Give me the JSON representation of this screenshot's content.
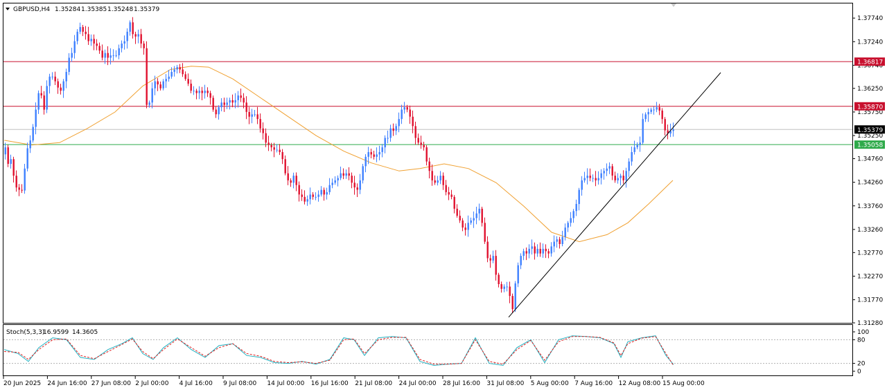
{
  "header": {
    "menu_icon": "triangle-down-icon",
    "symbol": "GBPUSD,H4",
    "open": "1.35284",
    "high": "1.35385",
    "low": "1.35248",
    "close": "1.35379"
  },
  "indicator": {
    "label": "Stoch(5,3,3)",
    "k_value": "16.9599",
    "d_value": "14.3605",
    "levels": [
      "100",
      "80",
      "20",
      "0"
    ]
  },
  "price_axis": {
    "ticks": [
      "1.37740",
      "1.37240",
      "1.36740",
      "1.36250",
      "1.35750",
      "1.35250",
      "1.34760",
      "1.34260",
      "1.33760",
      "1.33260",
      "1.32770",
      "1.32270",
      "1.31770",
      "1.31280"
    ]
  },
  "price_tags": [
    {
      "value": "1.36817",
      "color": "#c8102e",
      "text_color": "#ffffff"
    },
    {
      "value": "1.35870",
      "color": "#c8102e",
      "text_color": "#ffffff"
    },
    {
      "value": "1.35379",
      "color": "#000000",
      "text_color": "#ffffff"
    },
    {
      "value": "1.35058",
      "color": "#2eaa4a",
      "text_color": "#ffffff"
    }
  ],
  "time_axis": {
    "labels": [
      "20 Jun 2025",
      "24 Jun 16:00",
      "27 Jun 08:00",
      "2 Jul 00:00",
      "4 Jul 16:00",
      "9 Jul 08:00",
      "14 Jul 00:00",
      "16 Jul 16:00",
      "21 Jul 08:00",
      "24 Jul 00:00",
      "28 Jul 16:00",
      "31 Jul 08:00",
      "5 Aug 00:00",
      "7 Aug 16:00",
      "12 Aug 08:00",
      "15 Aug 00:00"
    ]
  },
  "colors": {
    "bull": "#3d7fff",
    "bear": "#e0102e",
    "ma": "#f0a030",
    "trendline": "#000000",
    "resistance": "#c8102e",
    "support": "#2eaa4a",
    "stoch_main": "#20b0c0",
    "stoch_signal": "#e02020"
  },
  "chart_data": {
    "type": "candlestick",
    "symbol": "GBPUSD",
    "timeframe": "H4",
    "ylim": [
      1.3128,
      1.3805
    ],
    "x_start": "20 Jun 2025",
    "x_end": "15 Aug 00:00",
    "candle_path": [
      [
        0,
        1.3485
      ],
      [
        4,
        1.35
      ],
      [
        8,
        1.3465
      ],
      [
        12,
        1.3475
      ],
      [
        16,
        1.344
      ],
      [
        19,
        1.3425
      ],
      [
        22,
        1.3395
      ],
      [
        24,
        1.341
      ],
      [
        27,
        1.34
      ],
      [
        30,
        1.3425
      ],
      [
        33,
        1.347
      ],
      [
        36,
        1.3498
      ],
      [
        39,
        1.3512
      ],
      [
        42,
        1.352
      ],
      [
        45,
        1.3555
      ],
      [
        48,
        1.358
      ],
      [
        52,
        1.3615
      ],
      [
        56,
        1.361
      ],
      [
        60,
        1.358
      ],
      [
        64,
        1.363
      ],
      [
        67,
        1.365
      ],
      [
        70,
        1.365
      ],
      [
        73,
        1.365
      ],
      [
        76,
        1.364
      ],
      [
        79,
        1.363
      ],
      [
        82,
        1.362
      ],
      [
        85,
        1.362
      ],
      [
        88,
        1.364
      ],
      [
        92,
        1.366
      ],
      [
        96,
        1.369
      ],
      [
        100,
        1.37
      ],
      [
        104,
        1.3725
      ],
      [
        108,
        1.3745
      ],
      [
        112,
        1.3755
      ],
      [
        116,
        1.3745
      ],
      [
        120,
        1.374
      ],
      [
        124,
        1.3725
      ],
      [
        128,
        1.373
      ],
      [
        132,
        1.372
      ],
      [
        136,
        1.3715
      ],
      [
        140,
        1.3705
      ],
      [
        144,
        1.369
      ],
      [
        148,
        1.37
      ],
      [
        152,
        1.369
      ],
      [
        156,
        1.3695
      ],
      [
        160,
        1.3695
      ],
      [
        164,
        1.3695
      ],
      [
        168,
        1.371
      ],
      [
        172,
        1.372
      ],
      [
        176,
        1.3725
      ],
      [
        180,
        1.3745
      ],
      [
        184,
        1.3765
      ],
      [
        188,
        1.374
      ],
      [
        192,
        1.3735
      ],
      [
        196,
        1.374
      ],
      [
        200,
        1.372
      ],
      [
        204,
        1.371
      ],
      [
        206,
        1.365
      ],
      [
        208,
        1.359
      ],
      [
        210,
        1.3585
      ],
      [
        213,
        1.36
      ],
      [
        216,
        1.3625
      ],
      [
        219,
        1.364
      ],
      [
        222,
        1.364
      ],
      [
        225,
        1.363
      ],
      [
        228,
        1.3625
      ],
      [
        232,
        1.364
      ],
      [
        236,
        1.3645
      ],
      [
        240,
        1.365
      ],
      [
        244,
        1.366
      ],
      [
        248,
        1.3665
      ],
      [
        252,
        1.367
      ],
      [
        256,
        1.3665
      ],
      [
        260,
        1.3655
      ],
      [
        264,
        1.3645
      ],
      [
        268,
        1.3635
      ],
      [
        272,
        1.362
      ],
      [
        276,
        1.362
      ],
      [
        280,
        1.3615
      ],
      [
        284,
        1.362
      ],
      [
        288,
        1.3615
      ],
      [
        292,
        1.362
      ],
      [
        296,
        1.3615
      ],
      [
        300,
        1.3605
      ],
      [
        304,
        1.358
      ],
      [
        308,
        1.357
      ],
      [
        312,
        1.3585
      ],
      [
        316,
        1.3595
      ],
      [
        320,
        1.359
      ],
      [
        324,
        1.3595
      ],
      [
        328,
        1.36
      ],
      [
        332,
        1.3595
      ],
      [
        336,
        1.36
      ],
      [
        340,
        1.361
      ],
      [
        344,
        1.3605
      ],
      [
        348,
        1.3595
      ],
      [
        352,
        1.3575
      ],
      [
        356,
        1.3565
      ],
      [
        360,
        1.357
      ],
      [
        364,
        1.357
      ],
      [
        368,
        1.356
      ],
      [
        372,
        1.354
      ],
      [
        376,
        1.353
      ],
      [
        380,
        1.351
      ],
      [
        384,
        1.3505
      ],
      [
        388,
        1.35
      ],
      [
        392,
        1.3495
      ],
      [
        396,
        1.3495
      ],
      [
        400,
        1.349
      ],
      [
        404,
        1.3475
      ],
      [
        408,
        1.3445
      ],
      [
        412,
        1.343
      ],
      [
        416,
        1.3425
      ],
      [
        420,
        1.344
      ],
      [
        424,
        1.342
      ],
      [
        428,
        1.34
      ],
      [
        432,
        1.3395
      ],
      [
        436,
        1.3385
      ],
      [
        440,
        1.339
      ],
      [
        444,
        1.34
      ],
      [
        448,
        1.3395
      ],
      [
        452,
        1.3395
      ],
      [
        456,
        1.34
      ],
      [
        460,
        1.341
      ],
      [
        464,
        1.34
      ],
      [
        468,
        1.3405
      ],
      [
        472,
        1.342
      ],
      [
        476,
        1.3425
      ],
      [
        480,
        1.343
      ],
      [
        484,
        1.3435
      ],
      [
        488,
        1.3445
      ],
      [
        492,
        1.344
      ],
      [
        496,
        1.3445
      ],
      [
        500,
        1.344
      ],
      [
        504,
        1.3425
      ],
      [
        508,
        1.3415
      ],
      [
        512,
        1.341
      ],
      [
        516,
        1.343
      ],
      [
        520,
        1.346
      ],
      [
        524,
        1.348
      ],
      [
        528,
        1.349
      ],
      [
        532,
        1.3485
      ],
      [
        536,
        1.348
      ],
      [
        540,
        1.3485
      ],
      [
        544,
        1.349
      ],
      [
        548,
        1.35
      ],
      [
        552,
        1.352
      ],
      [
        556,
        1.352
      ],
      [
        560,
        1.354
      ],
      [
        564,
        1.3535
      ],
      [
        568,
        1.3545
      ],
      [
        572,
        1.356
      ],
      [
        576,
        1.358
      ],
      [
        580,
        1.3585
      ],
      [
        584,
        1.358
      ],
      [
        588,
        1.3565
      ],
      [
        592,
        1.3545
      ],
      [
        596,
        1.352
      ],
      [
        600,
        1.351
      ],
      [
        604,
        1.3505
      ],
      [
        608,
        1.35
      ],
      [
        612,
        1.347
      ],
      [
        616,
        1.345
      ],
      [
        620,
        1.343
      ],
      [
        624,
        1.3425
      ],
      [
        628,
        1.343
      ],
      [
        632,
        1.344
      ],
      [
        636,
        1.342
      ],
      [
        640,
        1.3405
      ],
      [
        644,
        1.34
      ],
      [
        648,
        1.3395
      ],
      [
        652,
        1.337
      ],
      [
        656,
        1.3355
      ],
      [
        660,
        1.3345
      ],
      [
        664,
        1.333
      ],
      [
        668,
        1.3325
      ],
      [
        672,
        1.334
      ],
      [
        676,
        1.3345
      ],
      [
        680,
        1.335
      ],
      [
        684,
        1.336
      ],
      [
        688,
        1.337
      ],
      [
        691,
        1.335
      ],
      [
        694,
        1.332
      ],
      [
        697,
        1.329
      ],
      [
        700,
        1.3265
      ],
      [
        704,
        1.326
      ],
      [
        708,
        1.327
      ],
      [
        712,
        1.323
      ],
      [
        716,
        1.321
      ],
      [
        720,
        1.32
      ],
      [
        724,
        1.3205
      ],
      [
        728,
        1.3205
      ],
      [
        732,
        1.3185
      ],
      [
        735,
        1.3148
      ],
      [
        738,
        1.3175
      ],
      [
        741,
        1.323
      ],
      [
        744,
        1.325
      ],
      [
        748,
        1.327
      ],
      [
        752,
        1.328
      ],
      [
        756,
        1.3275
      ],
      [
        760,
        1.3285
      ],
      [
        764,
        1.329
      ],
      [
        768,
        1.3275
      ],
      [
        772,
        1.3285
      ],
      [
        776,
        1.3275
      ],
      [
        780,
        1.3285
      ],
      [
        784,
        1.328
      ],
      [
        788,
        1.3275
      ],
      [
        792,
        1.329
      ],
      [
        796,
        1.33
      ],
      [
        800,
        1.3305
      ],
      [
        804,
        1.3295
      ],
      [
        808,
        1.331
      ],
      [
        812,
        1.333
      ],
      [
        816,
        1.334
      ],
      [
        820,
        1.335
      ],
      [
        824,
        1.3365
      ],
      [
        828,
        1.338
      ],
      [
        832,
        1.341
      ],
      [
        836,
        1.343
      ],
      [
        840,
        1.3435
      ],
      [
        844,
        1.344
      ],
      [
        848,
        1.3435
      ],
      [
        852,
        1.3435
      ],
      [
        856,
        1.343
      ],
      [
        860,
        1.3435
      ],
      [
        864,
        1.3445
      ],
      [
        868,
        1.345
      ],
      [
        872,
        1.3455
      ],
      [
        876,
        1.346
      ],
      [
        880,
        1.344
      ],
      [
        884,
        1.343
      ],
      [
        888,
        1.3435
      ],
      [
        892,
        1.344
      ],
      [
        896,
        1.343
      ],
      [
        900,
        1.345
      ],
      [
        904,
        1.347
      ],
      [
        908,
        1.349
      ],
      [
        912,
        1.35
      ],
      [
        916,
        1.3505
      ],
      [
        920,
        1.351
      ],
      [
        924,
        1.356
      ],
      [
        928,
        1.357
      ],
      [
        932,
        1.3575
      ],
      [
        936,
        1.358
      ],
      [
        940,
        1.358
      ],
      [
        944,
        1.3585
      ],
      [
        948,
        1.3578
      ],
      [
        952,
        1.356
      ],
      [
        955,
        1.354
      ],
      [
        958,
        1.3528
      ],
      [
        961,
        1.353
      ],
      [
        966,
        1.3538
      ]
    ],
    "ma_path": [
      [
        0,
        1.3515
      ],
      [
        40,
        1.3505
      ],
      [
        80,
        1.351
      ],
      [
        120,
        1.354
      ],
      [
        160,
        1.3575
      ],
      [
        200,
        1.363
      ],
      [
        240,
        1.3665
      ],
      [
        270,
        1.3672
      ],
      [
        295,
        1.367
      ],
      [
        330,
        1.3645
      ],
      [
        370,
        1.3605
      ],
      [
        410,
        1.3565
      ],
      [
        450,
        1.3525
      ],
      [
        490,
        1.3492
      ],
      [
        530,
        1.3467
      ],
      [
        570,
        1.345
      ],
      [
        600,
        1.3455
      ],
      [
        635,
        1.3465
      ],
      [
        670,
        1.3455
      ],
      [
        710,
        1.3425
      ],
      [
        750,
        1.3375
      ],
      [
        790,
        1.332
      ],
      [
        830,
        1.33
      ],
      [
        870,
        1.3315
      ],
      [
        900,
        1.334
      ],
      [
        930,
        1.338
      ],
      [
        965,
        1.343
      ]
    ],
    "resistance_levels": [
      1.36817,
      1.3587
    ],
    "support_level": 1.35058,
    "current_price": 1.35379,
    "trendline": {
      "from": [
        "31 Jul 08:00",
        1.314
      ],
      "to": [
        "15 Aug 00:00",
        1.36585
      ]
    },
    "stochastic": {
      "k": 16.9599,
      "d": 14.3605,
      "levels": [
        0,
        20,
        80,
        100
      ],
      "k_path": [
        [
          0,
          55
        ],
        [
          20,
          45
        ],
        [
          35,
          25
        ],
        [
          50,
          60
        ],
        [
          70,
          85
        ],
        [
          90,
          80
        ],
        [
          110,
          35
        ],
        [
          130,
          30
        ],
        [
          150,
          55
        ],
        [
          170,
          70
        ],
        [
          185,
          85
        ],
        [
          200,
          45
        ],
        [
          215,
          30
        ],
        [
          230,
          60
        ],
        [
          250,
          85
        ],
        [
          270,
          55
        ],
        [
          290,
          35
        ],
        [
          310,
          65
        ],
        [
          330,
          70
        ],
        [
          350,
          40
        ],
        [
          370,
          35
        ],
        [
          390,
          22
        ],
        [
          410,
          20
        ],
        [
          430,
          25
        ],
        [
          450,
          18
        ],
        [
          470,
          30
        ],
        [
          490,
          85
        ],
        [
          505,
          80
        ],
        [
          520,
          40
        ],
        [
          540,
          85
        ],
        [
          560,
          88
        ],
        [
          580,
          85
        ],
        [
          600,
          25
        ],
        [
          620,
          15
        ],
        [
          640,
          18
        ],
        [
          660,
          20
        ],
        [
          680,
          85
        ],
        [
          700,
          20
        ],
        [
          720,
          15
        ],
        [
          740,
          60
        ],
        [
          760,
          80
        ],
        [
          780,
          22
        ],
        [
          800,
          80
        ],
        [
          820,
          90
        ],
        [
          840,
          88
        ],
        [
          860,
          85
        ],
        [
          880,
          70
        ],
        [
          890,
          35
        ],
        [
          900,
          75
        ],
        [
          920,
          85
        ],
        [
          940,
          90
        ],
        [
          955,
          40
        ],
        [
          966,
          17
        ]
      ],
      "d_path": [
        [
          0,
          50
        ],
        [
          20,
          48
        ],
        [
          35,
          30
        ],
        [
          50,
          55
        ],
        [
          70,
          80
        ],
        [
          90,
          82
        ],
        [
          110,
          40
        ],
        [
          130,
          32
        ],
        [
          150,
          50
        ],
        [
          170,
          68
        ],
        [
          185,
          82
        ],
        [
          200,
          50
        ],
        [
          215,
          32
        ],
        [
          230,
          55
        ],
        [
          250,
          82
        ],
        [
          270,
          60
        ],
        [
          290,
          38
        ],
        [
          310,
          60
        ],
        [
          330,
          70
        ],
        [
          350,
          45
        ],
        [
          370,
          38
        ],
        [
          390,
          25
        ],
        [
          410,
          22
        ],
        [
          430,
          24
        ],
        [
          450,
          20
        ],
        [
          470,
          28
        ],
        [
          490,
          80
        ],
        [
          505,
          82
        ],
        [
          520,
          45
        ],
        [
          540,
          80
        ],
        [
          560,
          86
        ],
        [
          580,
          86
        ],
        [
          600,
          30
        ],
        [
          620,
          18
        ],
        [
          640,
          18
        ],
        [
          660,
          20
        ],
        [
          680,
          80
        ],
        [
          700,
          25
        ],
        [
          720,
          18
        ],
        [
          740,
          55
        ],
        [
          760,
          78
        ],
        [
          780,
          28
        ],
        [
          800,
          75
        ],
        [
          820,
          88
        ],
        [
          840,
          88
        ],
        [
          860,
          86
        ],
        [
          880,
          72
        ],
        [
          890,
          40
        ],
        [
          900,
          70
        ],
        [
          920,
          84
        ],
        [
          940,
          88
        ],
        [
          955,
          45
        ],
        [
          966,
          14
        ]
      ]
    }
  }
}
